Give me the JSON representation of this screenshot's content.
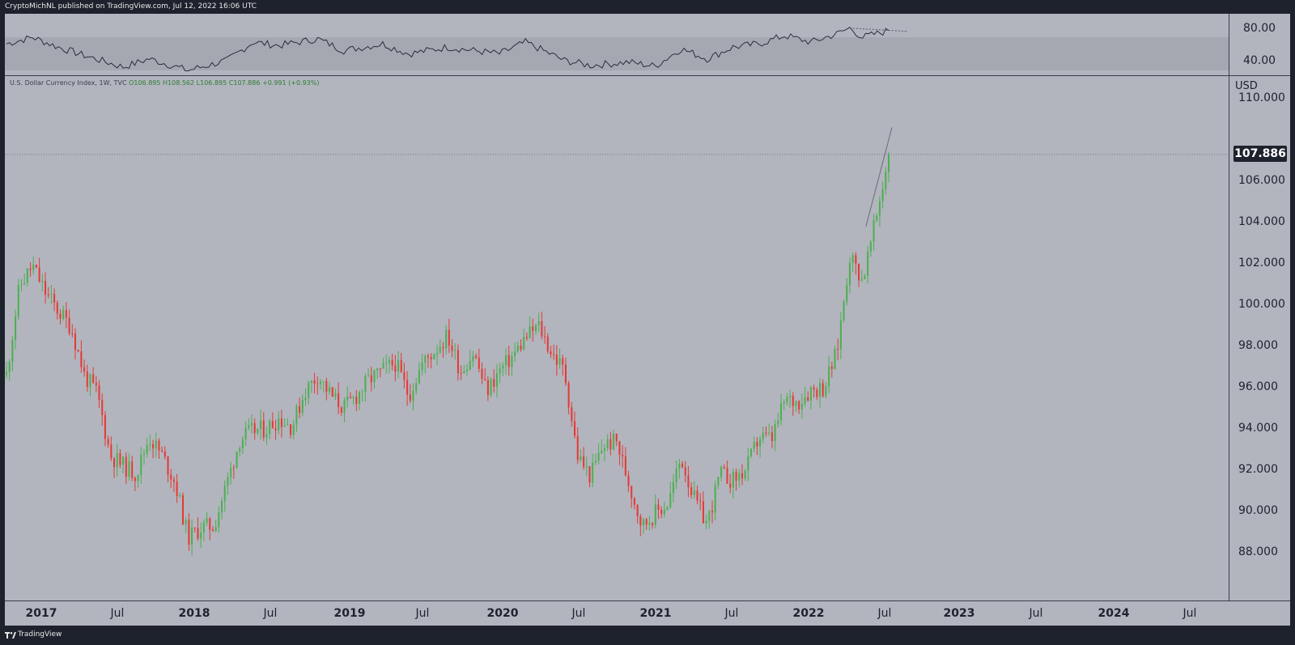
{
  "header": {
    "published": "CryptoMichNL published on TradingView.com, Jul 12, 2022 16:06 UTC"
  },
  "legend": {
    "name": "U.S. Dollar Currency Index, 1W, TVC",
    "open": "O106.895",
    "high": "H108.562",
    "low": "L106.895",
    "close": "C107.886",
    "change": "+0.991 (+0.93%)"
  },
  "rsi_axis": {
    "labels": [
      "80.00",
      "40.00"
    ]
  },
  "price_axis": {
    "currency": "USD",
    "labels": [
      "110.000",
      "106.000",
      "104.000",
      "102.000",
      "100.000",
      "98.000",
      "96.000",
      "94.000",
      "92.000",
      "90.000",
      "88.000"
    ],
    "last_price": "107.886"
  },
  "time_axis": {
    "labels": [
      {
        "text": "2017",
        "year": true
      },
      {
        "text": "Jul",
        "year": false
      },
      {
        "text": "2018",
        "year": true
      },
      {
        "text": "Jul",
        "year": false
      },
      {
        "text": "2019",
        "year": true
      },
      {
        "text": "Jul",
        "year": false
      },
      {
        "text": "2020",
        "year": true
      },
      {
        "text": "Jul",
        "year": false
      },
      {
        "text": "2021",
        "year": true
      },
      {
        "text": "Jul",
        "year": false
      },
      {
        "text": "2022",
        "year": true
      },
      {
        "text": "Jul",
        "year": false
      },
      {
        "text": "2023",
        "year": true
      },
      {
        "text": "Jul",
        "year": false
      },
      {
        "text": "2024",
        "year": true
      },
      {
        "text": "Jul",
        "year": false
      }
    ]
  },
  "footer": {
    "brand": "TradingView"
  },
  "colors": {
    "up": "#4caf50",
    "down": "#e53935",
    "background": "#b2b5be",
    "rsi_band": "#a5a8b1",
    "rsi_line": "#2a2e39"
  },
  "chart_data": {
    "type": "candlestick",
    "title": "U.S. Dollar Currency Index, 1W, TVC",
    "ylabel": "USD",
    "ylim": [
      86.3,
      111.0
    ],
    "x_start": "2016-11",
    "x_end": "2022-07",
    "last_close": 107.886,
    "close_path": [
      [
        "2016-11",
        97.2
      ],
      [
        "2016-12",
        101.5
      ],
      [
        "2017-01",
        102.5
      ],
      [
        "2017-02",
        101.2
      ],
      [
        "2017-03",
        100.3
      ],
      [
        "2017-04",
        99.5
      ],
      [
        "2017-05",
        97.2
      ],
      [
        "2017-06",
        96.3
      ],
      [
        "2017-07",
        93.3
      ],
      [
        "2017-08",
        92.8
      ],
      [
        "2017-09",
        92.4
      ],
      [
        "2017-10",
        94.2
      ],
      [
        "2017-11",
        93.3
      ],
      [
        "2017-12",
        92.0
      ],
      [
        "2018-01",
        89.3
      ],
      [
        "2018-02",
        89.8
      ],
      [
        "2018-03",
        89.9
      ],
      [
        "2018-04",
        92.0
      ],
      [
        "2018-05",
        94.1
      ],
      [
        "2018-06",
        94.5
      ],
      [
        "2018-07",
        94.6
      ],
      [
        "2018-08",
        95.1
      ],
      [
        "2018-09",
        94.7
      ],
      [
        "2018-10",
        96.4
      ],
      [
        "2018-11",
        97.2
      ],
      [
        "2018-12",
        96.2
      ],
      [
        "2019-01",
        95.6
      ],
      [
        "2019-02",
        96.2
      ],
      [
        "2019-03",
        97.0
      ],
      [
        "2019-04",
        97.4
      ],
      [
        "2019-05",
        97.8
      ],
      [
        "2019-06",
        96.2
      ],
      [
        "2019-07",
        97.7
      ],
      [
        "2019-08",
        98.4
      ],
      [
        "2019-09",
        99.1
      ],
      [
        "2019-10",
        97.4
      ],
      [
        "2019-11",
        98.3
      ],
      [
        "2019-12",
        96.4
      ],
      [
        "2020-01",
        97.4
      ],
      [
        "2020-02",
        98.1
      ],
      [
        "2020-03",
        99.0
      ],
      [
        "2020-04",
        99.6
      ],
      [
        "2020-05",
        98.3
      ],
      [
        "2020-06",
        97.4
      ],
      [
        "2020-07",
        93.3
      ],
      [
        "2020-08",
        92.3
      ],
      [
        "2020-09",
        93.8
      ],
      [
        "2020-10",
        94.0
      ],
      [
        "2020-11",
        91.9
      ],
      [
        "2020-12",
        89.9
      ],
      [
        "2021-01",
        90.5
      ],
      [
        "2021-02",
        91.0
      ],
      [
        "2021-03",
        93.2
      ],
      [
        "2021-04",
        91.2
      ],
      [
        "2021-05",
        90.0
      ],
      [
        "2021-06",
        92.4
      ],
      [
        "2021-07",
        92.1
      ],
      [
        "2021-08",
        92.6
      ],
      [
        "2021-09",
        94.2
      ],
      [
        "2021-10",
        94.1
      ],
      [
        "2021-11",
        96.0
      ],
      [
        "2021-12",
        95.9
      ],
      [
        "2022-01",
        96.5
      ],
      [
        "2022-02",
        96.6
      ],
      [
        "2022-03",
        98.3
      ],
      [
        "2022-04",
        103.0
      ],
      [
        "2022-05",
        101.8
      ],
      [
        "2022-06",
        104.7
      ],
      [
        "2022-07",
        107.886
      ]
    ],
    "annotations": {
      "price_trendline": [
        [
          "2022-04",
          104.4
        ],
        [
          "2022-07",
          109.2
        ]
      ],
      "rsi_trendline": [
        [
          "2022-04",
          81
        ],
        [
          "2022-08",
          77
        ]
      ]
    },
    "rsi": {
      "levels": [
        70,
        30
      ],
      "axis_labels": [
        80,
        40
      ],
      "values": [
        [
          "2016-11",
          62
        ],
        [
          "2017-01",
          70
        ],
        [
          "2017-03",
          58
        ],
        [
          "2017-05",
          48
        ],
        [
          "2017-08",
          34
        ],
        [
          "2017-10",
          44
        ],
        [
          "2018-01",
          30
        ],
        [
          "2018-04",
          42
        ],
        [
          "2018-06",
          64
        ],
        [
          "2018-08",
          60
        ],
        [
          "2018-11",
          68
        ],
        [
          "2019-01",
          54
        ],
        [
          "2019-04",
          62
        ],
        [
          "2019-06",
          50
        ],
        [
          "2019-09",
          58
        ],
        [
          "2019-11",
          54
        ],
        [
          "2020-01",
          50
        ],
        [
          "2020-03",
          64
        ],
        [
          "2020-06",
          42
        ],
        [
          "2020-08",
          36
        ],
        [
          "2020-11",
          40
        ],
        [
          "2021-01",
          35
        ],
        [
          "2021-03",
          56
        ],
        [
          "2021-05",
          44
        ],
        [
          "2021-07",
          58
        ],
        [
          "2021-09",
          62
        ],
        [
          "2021-11",
          72
        ],
        [
          "2022-01",
          64
        ],
        [
          "2022-03",
          74
        ],
        [
          "2022-04",
          81
        ],
        [
          "2022-05",
          70
        ],
        [
          "2022-07",
          78
        ]
      ]
    }
  }
}
